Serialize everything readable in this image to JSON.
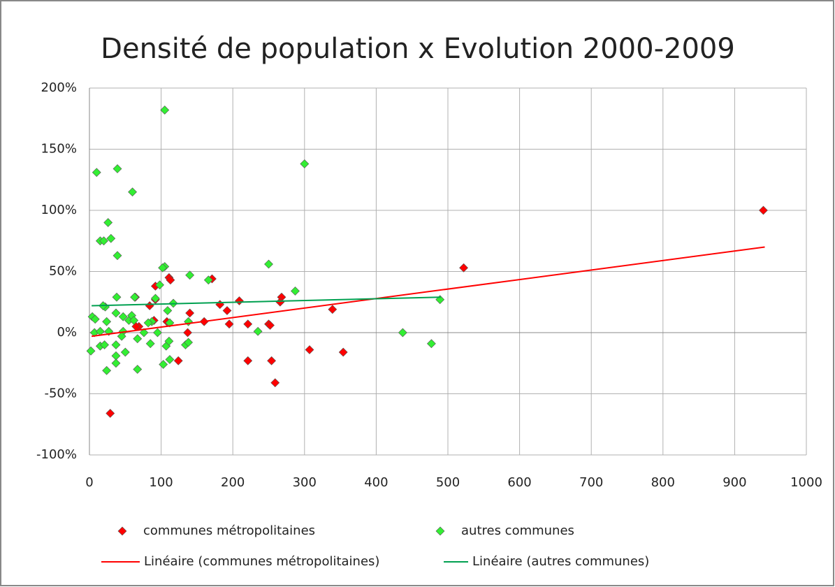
{
  "chart_data": {
    "type": "scatter",
    "title": "Densité de population x Evolution 2000-2009",
    "xlim": [
      0,
      1000
    ],
    "xticks": [
      0,
      100,
      200,
      300,
      400,
      500,
      600,
      700,
      800,
      900,
      1000
    ],
    "ylim": [
      -100,
      200
    ],
    "yticks": [
      {
        "value": -100,
        "label": "-100%"
      },
      {
        "value": -50,
        "label": "-50%"
      },
      {
        "value": 0,
        "label": "0%"
      },
      {
        "value": 50,
        "label": "50%"
      },
      {
        "value": 100,
        "label": "100%"
      },
      {
        "value": 150,
        "label": "150%"
      },
      {
        "value": 200,
        "label": "200%"
      }
    ],
    "grid": true,
    "legend": "bottom",
    "series": [
      {
        "name": "communes métropolitaines",
        "color": "#ff0000",
        "x": [
          940,
          522,
          339,
          307,
          354,
          268,
          266,
          250,
          252,
          254,
          259,
          221,
          221,
          209,
          182,
          192,
          195,
          171,
          160,
          140,
          137,
          124,
          111,
          113,
          108,
          92,
          92,
          90,
          84,
          69,
          65,
          29,
          64
        ],
        "values": [
          100,
          53,
          19,
          -14,
          -16,
          29,
          25,
          7,
          6,
          -23,
          -41,
          7,
          -23,
          26,
          23,
          18,
          7,
          44,
          9,
          16,
          0,
          -23,
          45,
          43,
          9,
          38,
          27,
          10,
          22,
          5,
          5,
          -66,
          29
        ]
      },
      {
        "name": "autres communes",
        "color": "#33ee33",
        "x": [
          105,
          300,
          10,
          39,
          60,
          26,
          30,
          15,
          20,
          39,
          105,
          102,
          250,
          140,
          166,
          287,
          98,
          38,
          63,
          92,
          117,
          109,
          22,
          19,
          4,
          8,
          24,
          37,
          47,
          55,
          59,
          62,
          87,
          82,
          138,
          112,
          489,
          437,
          477,
          235,
          7,
          15,
          27,
          47,
          45,
          76,
          95,
          67,
          2,
          15,
          21,
          37,
          37,
          50,
          37,
          24,
          67,
          85,
          107,
          111,
          112,
          103,
          134,
          138
        ],
        "values": [
          182,
          138,
          131,
          134,
          115,
          90,
          77,
          75,
          75,
          63,
          54,
          53,
          56,
          47,
          43,
          34,
          39,
          29,
          29,
          28,
          24,
          18,
          21,
          22,
          13,
          11,
          9,
          16,
          13,
          10,
          14,
          10,
          9,
          8,
          9,
          8,
          27,
          0,
          -9,
          1,
          0,
          1,
          1,
          1,
          -3,
          0,
          0,
          -5,
          -15,
          -11,
          -10,
          -10,
          -19,
          -16,
          -25,
          -31,
          -30,
          -9,
          -11,
          -7,
          -22,
          -26,
          -10,
          -8
        ]
      }
    ],
    "trendlines": [
      {
        "name": "Linéaire (communes métropolitaines)",
        "color": "#ff0000",
        "x": [
          3,
          942
        ],
        "values": [
          -3,
          70
        ]
      },
      {
        "name": "Linéaire (autres communes)",
        "color": "#00a050",
        "x": [
          3,
          490
        ],
        "values": [
          22,
          29
        ]
      }
    ]
  }
}
